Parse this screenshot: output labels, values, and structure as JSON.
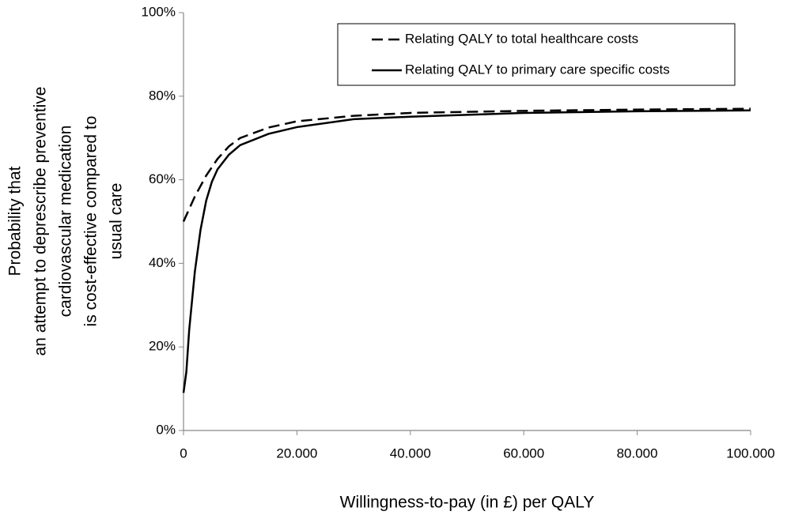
{
  "chart_data": {
    "type": "line",
    "xlabel": "Willingness-to-pay (in £) per QALY",
    "ylabel": [
      "Probability that",
      "an attempt to deprescribe preventive",
      "cardiovascular medication",
      "is cost-effective compared to",
      "usual care"
    ],
    "x": [
      0,
      500,
      1000,
      2000,
      3000,
      4000,
      5000,
      6000,
      8000,
      10000,
      15000,
      20000,
      30000,
      40000,
      60000,
      80000,
      100000
    ],
    "series": [
      {
        "name": "Relating QALY to total healthcare costs",
        "color": "#000000",
        "dash": true,
        "values": [
          50,
          51.5,
          53,
          56,
          58.5,
          61,
          63,
          65,
          68,
          70,
          72.5,
          74,
          75.3,
          76,
          76.5,
          76.8,
          77
        ]
      },
      {
        "name": "Relating QALY to primary care specific costs",
        "color": "#000000",
        "dash": false,
        "values": [
          9,
          14,
          24,
          38,
          48,
          55,
          59.5,
          62.5,
          66,
          68.3,
          71,
          72.6,
          74.5,
          75.1,
          76,
          76.4,
          76.6
        ]
      }
    ],
    "xlim": [
      0,
      100000
    ],
    "xticks": [
      0,
      {
        "value": 20000,
        "label": "20.000"
      },
      {
        "value": 40000,
        "label": "40.000"
      },
      {
        "value": 60000,
        "label": "60.000"
      },
      {
        "value": 80000,
        "label": "80.000"
      },
      {
        "value": 100000,
        "label": "100.000"
      }
    ],
    "ylim": [
      0,
      100
    ],
    "yticks": [
      {
        "value": 0,
        "label": "0%"
      },
      {
        "value": 20,
        "label": "20%"
      },
      {
        "value": 40,
        "label": "40%"
      },
      {
        "value": 60,
        "label": "60%"
      },
      {
        "value": 80,
        "label": "80%"
      },
      {
        "value": 100,
        "label": "100%"
      }
    ],
    "grid": false,
    "legend": "upper right"
  }
}
